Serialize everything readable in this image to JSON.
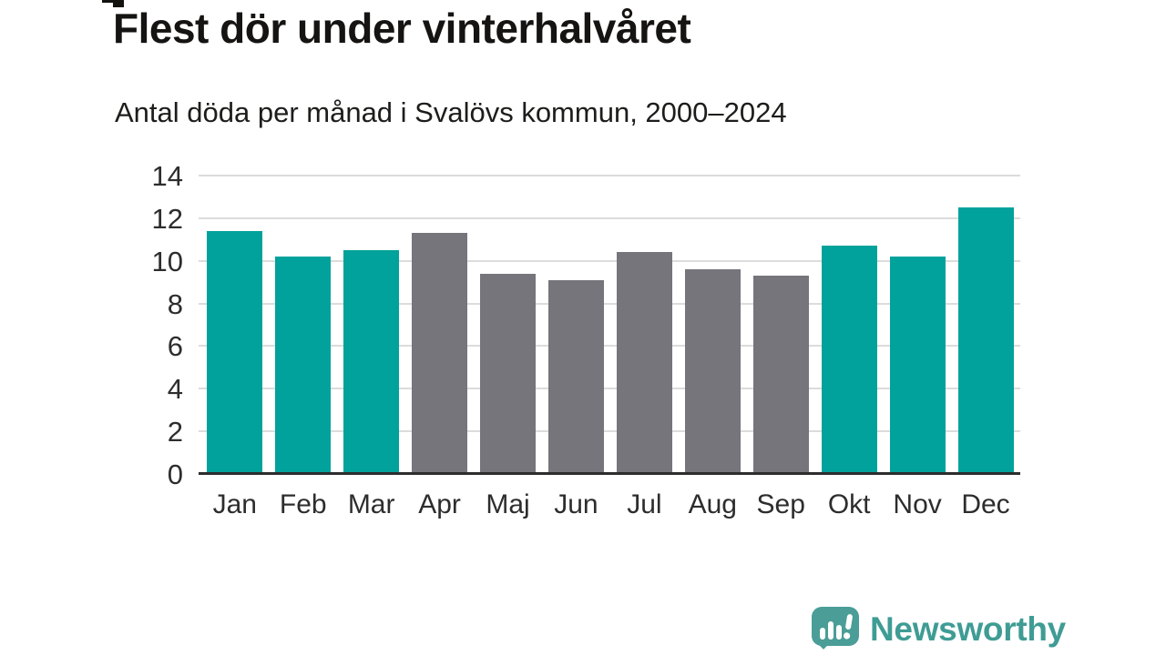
{
  "chart_data": {
    "type": "bar",
    "title": "Flest dör under vinterhalvåret",
    "subtitle": "Antal döda per månad i Svalövs kommun, 2000–2024",
    "categories": [
      "Jan",
      "Feb",
      "Mar",
      "Apr",
      "Maj",
      "Jun",
      "Jul",
      "Aug",
      "Sep",
      "Okt",
      "Nov",
      "Dec"
    ],
    "values": [
      11.4,
      10.2,
      10.5,
      11.3,
      9.4,
      9.1,
      10.4,
      9.6,
      9.3,
      10.7,
      10.2,
      12.5
    ],
    "bar_colors": [
      "teal",
      "teal",
      "teal",
      "gray",
      "gray",
      "gray",
      "gray",
      "gray",
      "gray",
      "teal",
      "teal",
      "teal"
    ],
    "palette": {
      "teal": "#00a29b",
      "gray": "#75757b"
    },
    "highlight_meaning": "winter half-year months in teal, summer half-year in gray",
    "xlabel": "",
    "ylabel": "",
    "ylim": [
      0,
      14
    ],
    "yticks": [
      0,
      2,
      4,
      6,
      8,
      10,
      12,
      14
    ],
    "grid": "horizontal",
    "gridline_color": "#dcdcdc",
    "axis_line_color": "#2d2d2d",
    "legend": "none"
  },
  "branding": {
    "name": "Newsworthy",
    "logo_icon": "bar-chart-speech-bubble-icon",
    "icon_color": "#4a9e97",
    "text_color": "#3f9c94"
  }
}
